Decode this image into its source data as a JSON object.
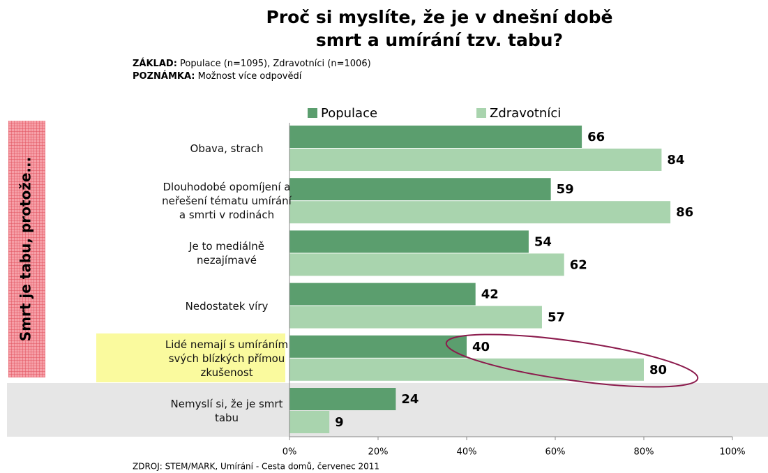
{
  "chart_data": {
    "type": "hbar",
    "title": "Proč si myslíte, že je v dnešní době\nsmrt a umírání tzv. tabu?",
    "base_label": "ZÁKLAD:",
    "base_text": "Populace (n=1095), Zdravotníci (n=1006)",
    "note_label": "POZNÁMKA:",
    "note_text": "Možnost více odpovědí",
    "side_label": "Smrt je tabu, protože...",
    "source": "ZDROJ: STEM/MARK, Umírání - Cesta domů, červenec 2011",
    "categories": [
      "Obava, strach",
      "Dlouhodobé opomíjení a\nneřešení tématu umírání\na smrti v rodinách",
      "Je to mediálně\nnezajímavé",
      "Nedostatek víry",
      "Lidé nemají s umíráním\nsvých blízkých přímou\nzkušenost",
      "Nemyslí si, že je smrt\ntabu"
    ],
    "series": [
      {
        "name": "Populace",
        "color": "#5b9e6e",
        "values": [
          66,
          59,
          54,
          42,
          40,
          24
        ]
      },
      {
        "name": "Zdravotníci",
        "color": "#a9d4ae",
        "values": [
          84,
          86,
          62,
          57,
          80,
          9
        ]
      }
    ],
    "xlim": [
      0,
      100
    ],
    "xticks": [
      {
        "value": 0,
        "label": "0%"
      },
      {
        "value": 20,
        "label": "20%"
      },
      {
        "value": 40,
        "label": "40%"
      },
      {
        "value": 60,
        "label": "60%"
      },
      {
        "value": 80,
        "label": "80%"
      },
      {
        "value": 100,
        "label": "100%"
      }
    ]
  }
}
